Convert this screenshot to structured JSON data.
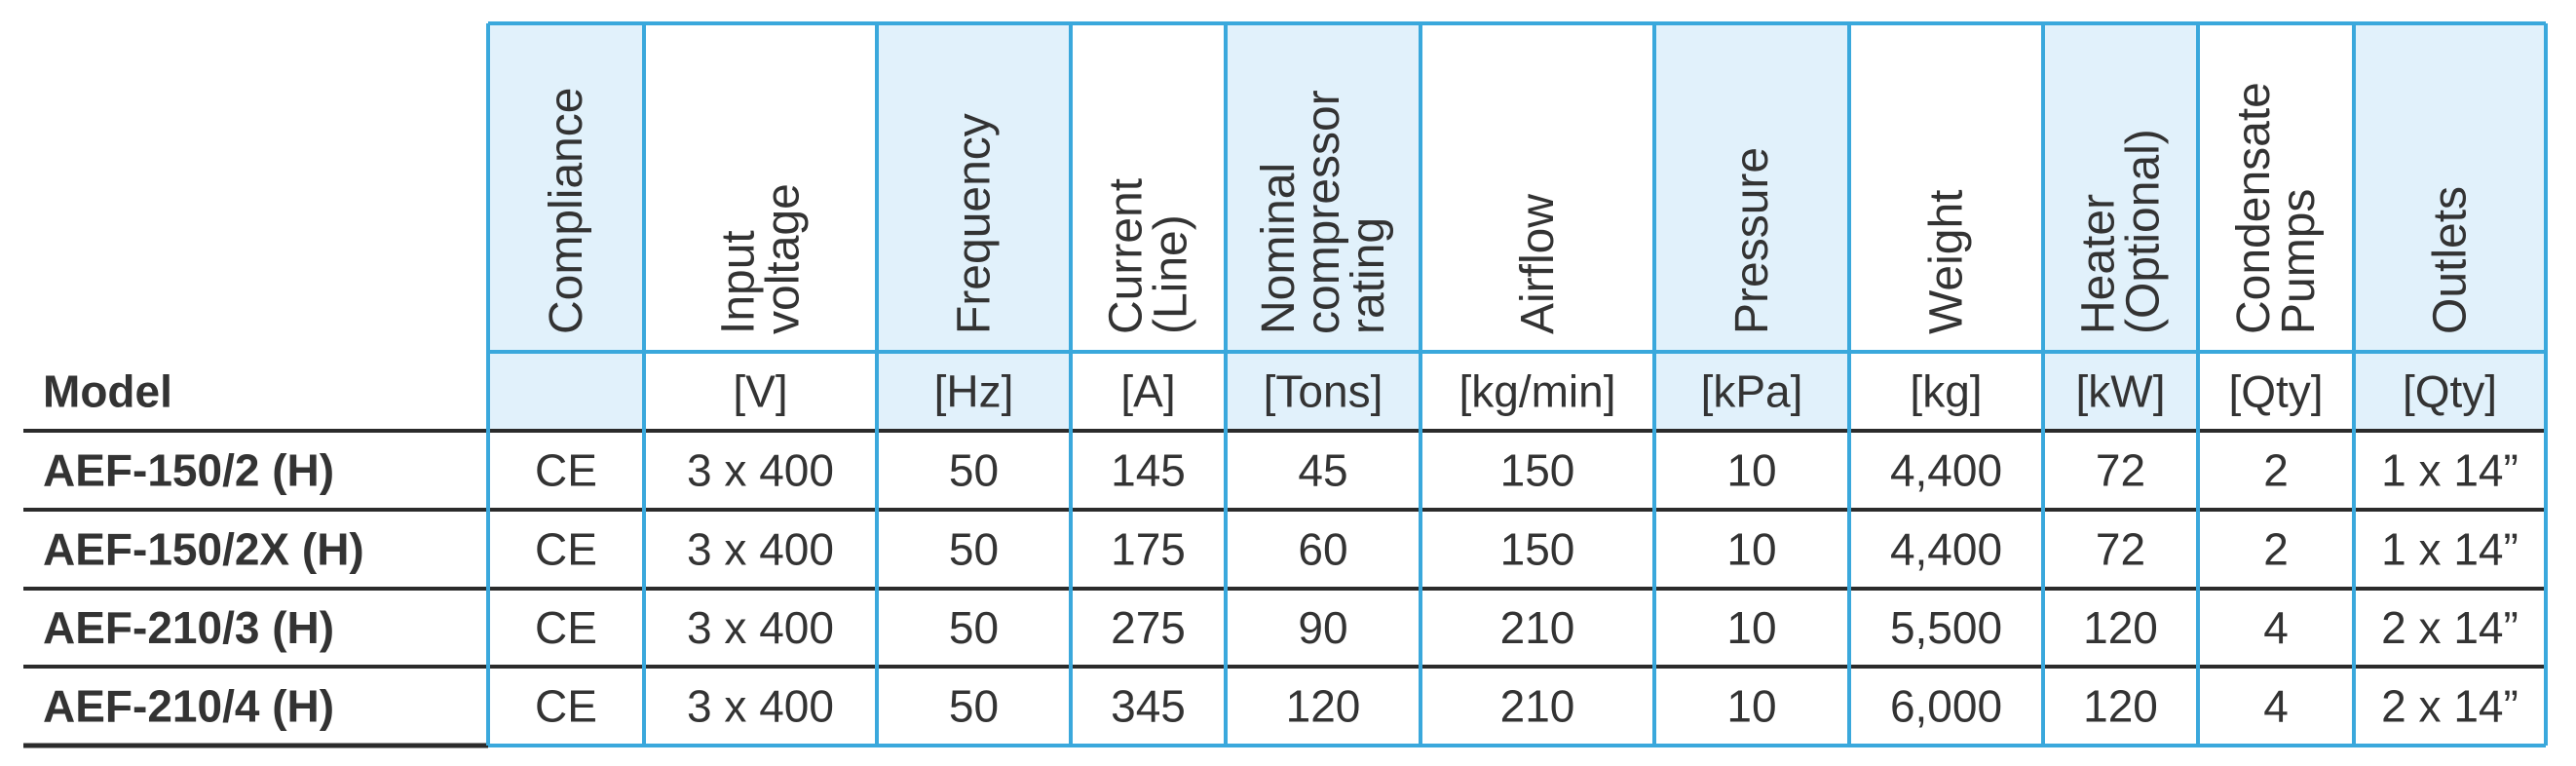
{
  "table": {
    "header": {
      "model": "Model"
    },
    "columns": [
      {
        "label": "Compliance"
      },
      {
        "label": "Input voltage",
        "unit": "[V]"
      },
      {
        "label": "Frequency",
        "unit": "[Hz]"
      },
      {
        "label": "Current (Line)",
        "unit": "[A]"
      },
      {
        "label": "Nominal compressor rating",
        "unit": "[Tons]"
      },
      {
        "label": "Airflow",
        "unit": "[kg/min]"
      },
      {
        "label": "Pressure",
        "unit": "[kPa]"
      },
      {
        "label": "Weight",
        "unit": "[kg]"
      },
      {
        "label": "Heater (Optional)",
        "unit": "[kW]"
      },
      {
        "label": "Condensate Pumps",
        "unit": "[Qty]"
      },
      {
        "label": "Outlets",
        "unit": "[Qty]"
      }
    ],
    "rows": [
      {
        "model": "AEF-150/2 (H)",
        "cells": [
          "CE",
          "3 x 400",
          "50",
          "145",
          "45",
          "150",
          "10",
          "4,400",
          "72",
          "2",
          "1 x 14”"
        ]
      },
      {
        "model": "AEF-150/2X (H)",
        "cells": [
          "CE",
          "3 x 400",
          "50",
          "175",
          "60",
          "150",
          "10",
          "4,400",
          "72",
          "2",
          "1 x 14”"
        ]
      },
      {
        "model": "AEF-210/3 (H)",
        "cells": [
          "CE",
          "3 x 400",
          "50",
          "275",
          "90",
          "210",
          "10",
          "5,500",
          "120",
          "4",
          "2 x 14”"
        ]
      },
      {
        "model": "AEF-210/4 (H)",
        "cells": [
          "CE",
          "3 x 400",
          "50",
          "345",
          "120",
          "210",
          "10",
          "6,000",
          "120",
          "4",
          "2 x 14”"
        ]
      }
    ]
  }
}
